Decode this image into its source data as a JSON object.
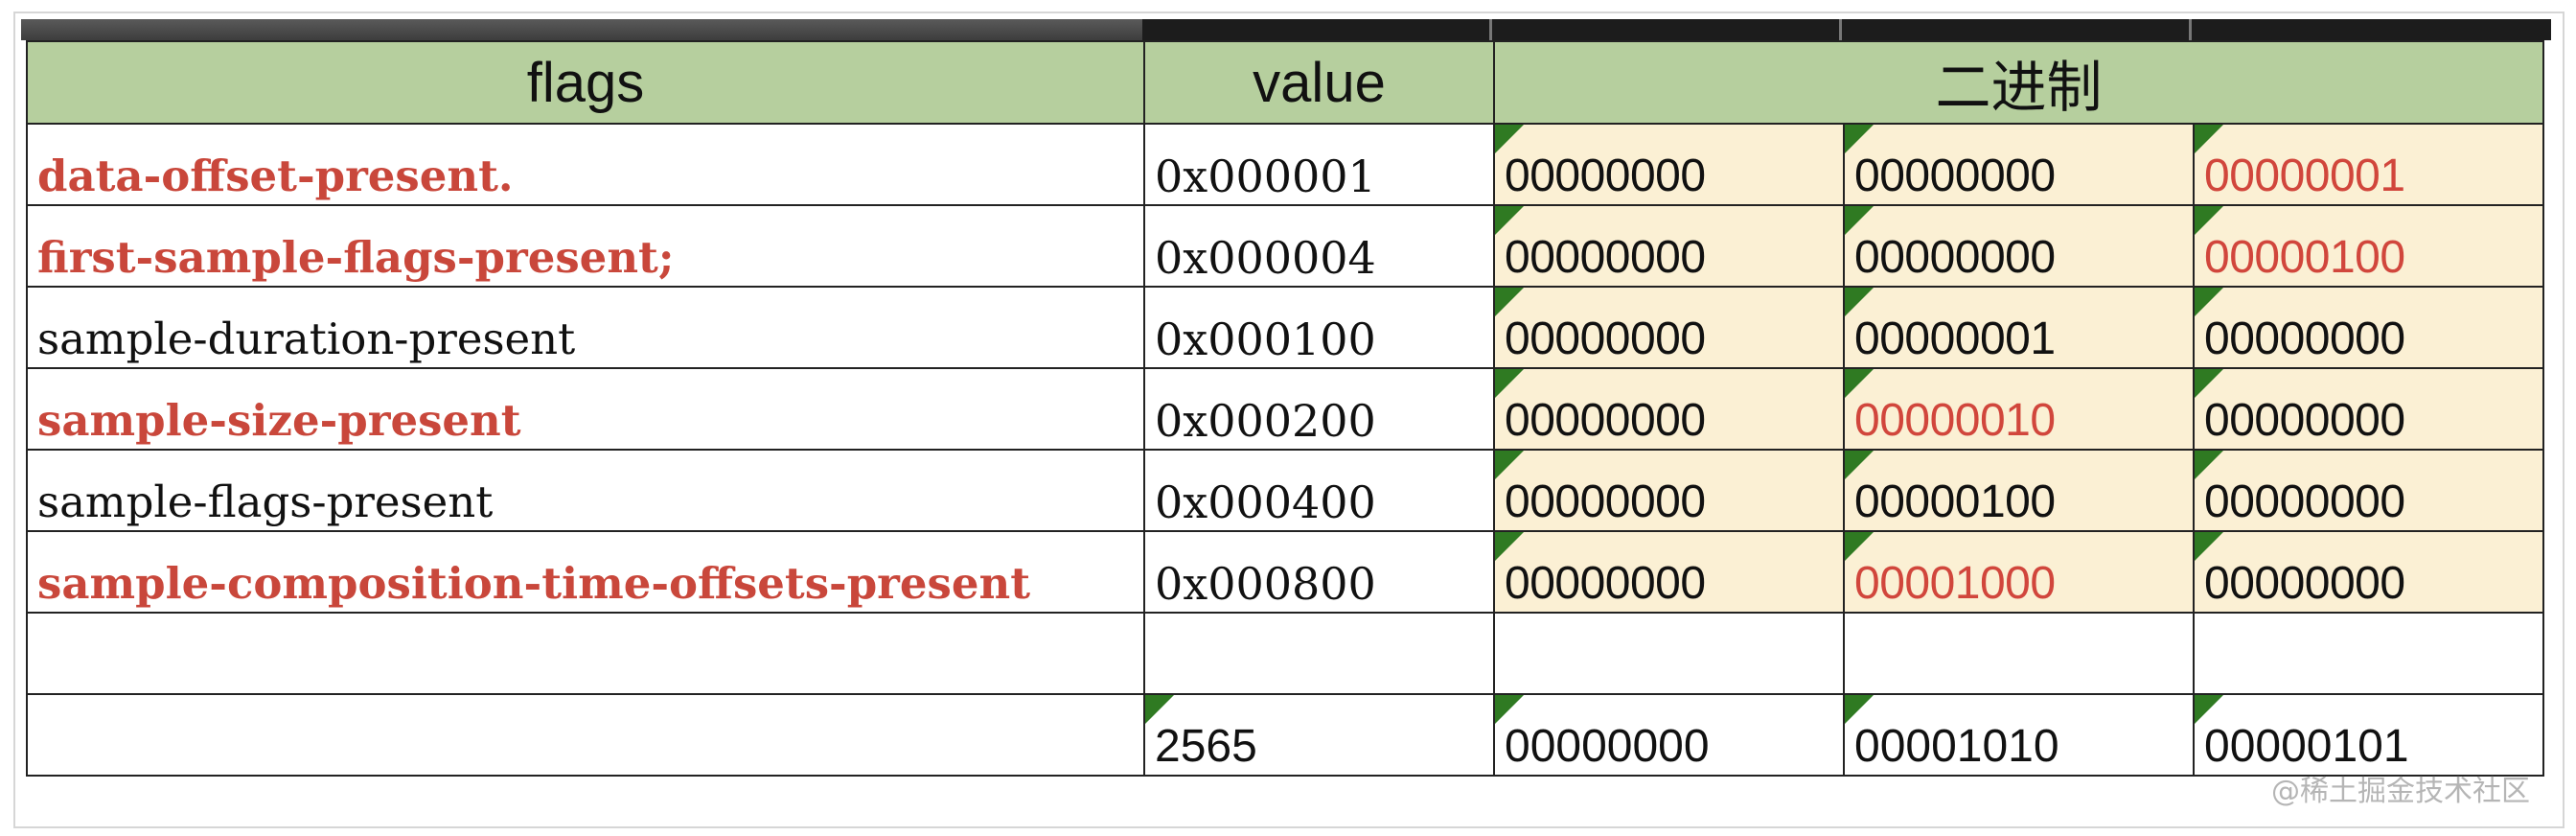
{
  "header": {
    "col_flags": "flags",
    "col_value": "value",
    "col_binary": "二进制"
  },
  "rows": [
    {
      "flag": "data-offset-present.",
      "value": "0x000001",
      "b1": "00000000",
      "b2": "00000000",
      "b3": "00000001"
    },
    {
      "flag": "first-sample-flags-present;",
      "value": "0x000004",
      "b1": "00000000",
      "b2": "00000000",
      "b3": "00000100"
    },
    {
      "flag": "sample-duration-present",
      "value": "0x000100",
      "b1": "00000000",
      "b2": "00000001",
      "b3": "00000000"
    },
    {
      "flag": "sample-size-present",
      "value": "0x000200",
      "b1": "00000000",
      "b2": "00000010",
      "b3": "00000000"
    },
    {
      "flag": "sample-flags-present",
      "value": "0x000400",
      "b1": "00000000",
      "b2": "00000100",
      "b3": "00000000"
    },
    {
      "flag": "sample-composition-time-offsets-present",
      "value": "0x000800",
      "b1": "00000000",
      "b2": "00001000",
      "b3": "00000000"
    }
  ],
  "total": {
    "value": "2565",
    "b1": "00000000",
    "b2": "00001010",
    "b3": "00000101"
  },
  "colors": {
    "header_bg": "#b6cf9e",
    "binary_bg": "#fbf0d4",
    "highlight": "#c9473b"
  },
  "watermark": "@稀土掘金技术社区"
}
